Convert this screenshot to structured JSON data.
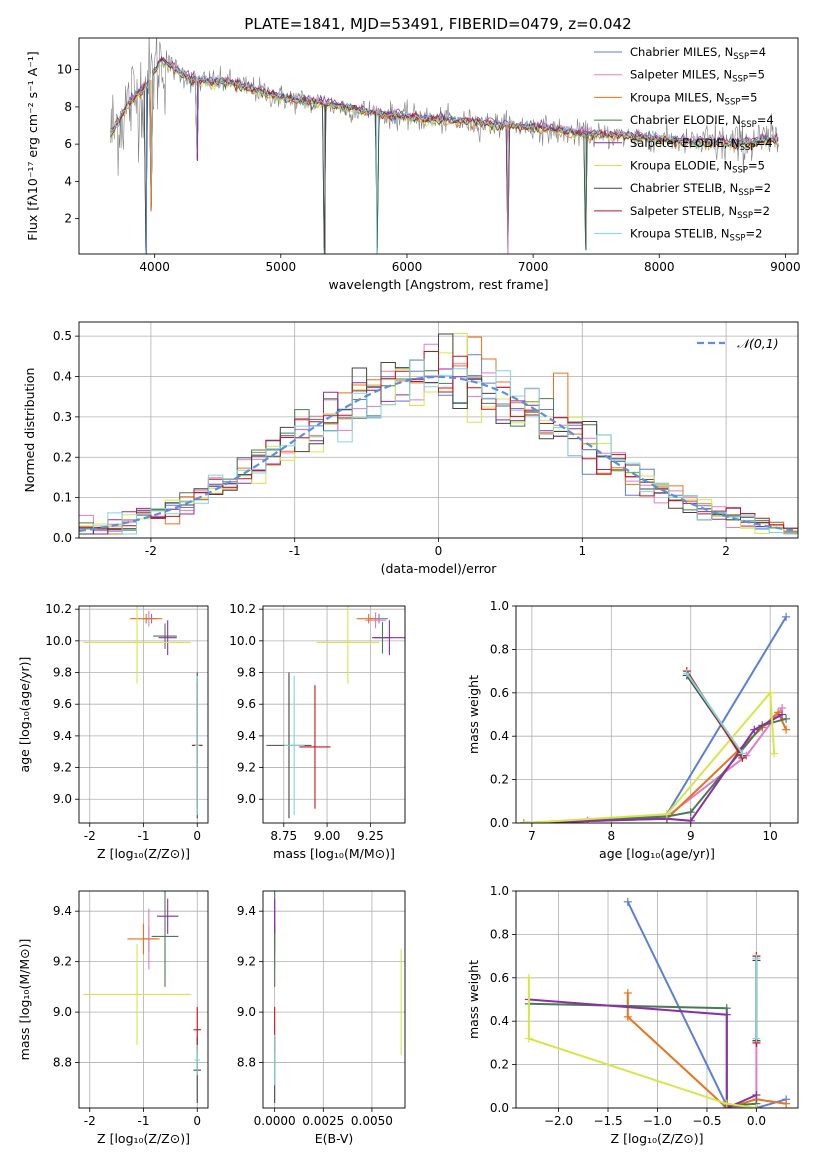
{
  "figure": {
    "title": "PLATE=1841, MJD=53491, FIBERID=0479, z=0.042"
  },
  "colors": {
    "Chabrier MILES": "#5b7fd6",
    "Salpeter MILES": "#e67ac8",
    "Kroupa MILES": "#e8731a",
    "Chabrier ELODIE": "#4a7a55",
    "Salpeter ELODIE": "#8b2fa6",
    "Kroupa ELODIE": "#d6e64a",
    "Chabrier STELIB": "#444444",
    "Salpeter STELIB": "#c0171b",
    "Kroupa STELIB": "#7fd6d8",
    "data": "#808080",
    "normal": "#5b8fe0"
  },
  "chart_data": [
    {
      "id": "spectrum",
      "type": "line",
      "xlabel": "wavelength [Angstrom, rest frame]",
      "ylabel": "Flux [fλ10⁻¹⁷ erg cm⁻² s⁻¹ A⁻¹]",
      "xlim": [
        3400,
        9100
      ],
      "ylim": [
        0.1,
        11.7
      ],
      "xticks": [
        4000,
        5000,
        6000,
        7000,
        8000,
        9000
      ],
      "yticks": [
        2,
        4,
        6,
        8,
        10
      ],
      "grid": false,
      "legend_position": "top-right",
      "legend": [
        {
          "name": "Chabrier MILES",
          "nssp": "4"
        },
        {
          "name": "Salpeter MILES",
          "nssp": "5"
        },
        {
          "name": "Kroupa MILES",
          "nssp": "5"
        },
        {
          "name": "Chabrier ELODIE",
          "nssp": "4"
        },
        {
          "name": "Salpeter ELODIE",
          "nssp": "4"
        },
        {
          "name": "Kroupa ELODIE",
          "nssp": "5"
        },
        {
          "name": "Chabrier STELIB",
          "nssp": "2"
        },
        {
          "name": "Salpeter STELIB",
          "nssp": "2"
        },
        {
          "name": "Kroupa STELIB",
          "nssp": "2"
        }
      ],
      "continuum": {
        "x": [
          3650,
          3800,
          3950,
          4050,
          4300,
          4600,
          5000,
          5400,
          5800,
          6200,
          6600,
          7000,
          7400,
          7800,
          8200,
          8600,
          8900
        ],
        "y": [
          6.5,
          8.2,
          9.2,
          10.5,
          9.4,
          9.3,
          8.5,
          8.1,
          7.6,
          7.3,
          7.1,
          6.9,
          6.5,
          6.4,
          6.1,
          6.0,
          6.2
        ]
      },
      "features": [
        {
          "x": 3935,
          "y": 0.1
        },
        {
          "x": 3970,
          "y": 2.4
        },
        {
          "x": 4340,
          "y": 5.1
        },
        {
          "x": 5350,
          "y": 0.1
        },
        {
          "x": 5760,
          "y": 0.1
        },
        {
          "x": 6800,
          "y": 0.1
        },
        {
          "x": 7420,
          "y": 0.3
        }
      ]
    },
    {
      "id": "residuals",
      "type": "histogram",
      "xlabel": "(data-model)/error",
      "ylabel": "Normed distribution",
      "xlim": [
        -2.5,
        2.5
      ],
      "ylim": [
        0,
        0.535
      ],
      "xticks": [
        -2,
        -1,
        0,
        1,
        2
      ],
      "yticks": [
        0.0,
        0.1,
        0.2,
        0.3,
        0.4,
        0.5
      ],
      "grid": true,
      "legend_position": "top-right",
      "legend": [
        {
          "name": "𝒩(0,1)"
        }
      ],
      "bins": {
        "start": -2.5,
        "width": 0.1,
        "count": 50
      },
      "normal": {
        "mean": 0,
        "sigma": 1
      }
    },
    {
      "id": "age_vs_Z",
      "type": "scatter",
      "xlabel": "Z [log₁₀(Z/Z⊙)]",
      "ylabel": "age  [log₁₀(age/yr)]",
      "xlim": [
        -2.2,
        0.2
      ],
      "ylim": [
        8.85,
        10.22
      ],
      "xticks": [
        -2,
        -1,
        0
      ],
      "yticks": [
        9.0,
        9.2,
        9.4,
        9.6,
        9.8,
        10.0,
        10.2
      ],
      "grid": true,
      "points": [
        {
          "series": "Chabrier MILES",
          "x": -0.85,
          "y": 10.14,
          "xerr": 0.1,
          "yerr": 0.03
        },
        {
          "series": "Salpeter MILES",
          "x": -0.9,
          "y": 10.14,
          "xerr": 0.12,
          "yerr": 0.05
        },
        {
          "series": "Kroupa MILES",
          "x": -0.95,
          "y": 10.14,
          "xerr": 0.3,
          "yerr": 0.03
        },
        {
          "series": "Chabrier ELODIE",
          "x": -0.6,
          "y": 10.03,
          "xerr": 0.22,
          "yerr": 0.08
        },
        {
          "series": "Salpeter ELODIE",
          "x": -0.55,
          "y": 10.02,
          "xerr": 0.17,
          "yerr": 0.11
        },
        {
          "series": "Kroupa ELODIE",
          "x": -1.12,
          "y": 9.99,
          "xerr": 1.0,
          "yerr": 0.26
        },
        {
          "series": "Chabrier STELIB",
          "x": 0.0,
          "y": 9.34,
          "xerr": 0.1,
          "yerr": 0.46
        },
        {
          "series": "Salpeter STELIB",
          "x": 0.0,
          "y": 9.34,
          "xerr": 0.09,
          "yerr": 0.4
        },
        {
          "series": "Kroupa STELIB",
          "x": 0.0,
          "y": 9.34,
          "xerr": 0.04,
          "yerr": 0.44
        }
      ]
    },
    {
      "id": "age_vs_mass",
      "type": "scatter",
      "xlabel": "mass [log₁₀(M/M⊙)]",
      "xlim": [
        8.63,
        9.45
      ],
      "ylim": [
        8.85,
        10.22
      ],
      "xticks": [
        8.75,
        9.0,
        9.25
      ],
      "xticklabels": [
        "8.75",
        "9.00",
        "9.25"
      ],
      "yticks": [
        9.0,
        9.2,
        9.4,
        9.6,
        9.8,
        10.0,
        10.2
      ],
      "grid": true,
      "points": [
        {
          "series": "Chabrier MILES",
          "x": 9.3,
          "y": 10.14,
          "xerr": 0.05,
          "yerr": 0.03
        },
        {
          "series": "Salpeter MILES",
          "x": 9.28,
          "y": 10.13,
          "xerr": 0.06,
          "yerr": 0.05
        },
        {
          "series": "Kroupa MILES",
          "x": 9.24,
          "y": 10.14,
          "xerr": 0.07,
          "yerr": 0.03
        },
        {
          "series": "Chabrier ELODIE",
          "x": 9.32,
          "y": 10.02,
          "xerr": 0.05,
          "yerr": 0.1
        },
        {
          "series": "Salpeter ELODIE",
          "x": 9.36,
          "y": 10.02,
          "xerr": 0.1,
          "yerr": 0.11
        },
        {
          "series": "Kroupa ELODIE",
          "x": 9.12,
          "y": 9.99,
          "xerr": 0.18,
          "yerr": 0.26
        },
        {
          "series": "Chabrier STELIB",
          "x": 8.78,
          "y": 9.34,
          "xerr": 0.13,
          "yerr": 0.46
        },
        {
          "series": "Salpeter STELIB",
          "x": 8.93,
          "y": 9.33,
          "xerr": 0.09,
          "yerr": 0.39
        },
        {
          "series": "Kroupa STELIB",
          "x": 8.81,
          "y": 9.34,
          "xerr": 0.06,
          "yerr": 0.44
        }
      ]
    },
    {
      "id": "mass_weight_vs_age",
      "type": "line",
      "xlabel": "age  [log₁₀(age/yr)]",
      "ylabel": "mass weight",
      "xlim": [
        6.8,
        10.35
      ],
      "ylim": [
        0,
        1.0
      ],
      "xticks": [
        7,
        8,
        9,
        10
      ],
      "yticks": [
        0.0,
        0.2,
        0.4,
        0.6,
        0.8,
        1.0
      ],
      "grid": true,
      "series": [
        {
          "name": "Chabrier MILES",
          "x": [
            6.9,
            7.7,
            8.7,
            10.2
          ],
          "y": [
            0.0,
            0.01,
            0.04,
            0.95
          ]
        },
        {
          "name": "Salpeter MILES",
          "x": [
            6.9,
            7.7,
            8.7,
            9.7,
            10.15
          ],
          "y": [
            0.0,
            0.01,
            0.03,
            0.31,
            0.53
          ]
        },
        {
          "name": "Kroupa MILES",
          "x": [
            6.9,
            8.7,
            9.9,
            10.1,
            10.2
          ],
          "y": [
            0.0,
            0.02,
            0.44,
            0.51,
            0.43
          ]
        },
        {
          "name": "Chabrier ELODIE",
          "x": [
            6.9,
            8.7,
            9.0,
            9.9,
            10.2
          ],
          "y": [
            0.0,
            0.03,
            0.05,
            0.45,
            0.48
          ]
        },
        {
          "name": "Salpeter ELODIE",
          "x": [
            6.9,
            8.7,
            9.0,
            9.8,
            10.15
          ],
          "y": [
            0.0,
            0.02,
            0.01,
            0.43,
            0.5
          ]
        },
        {
          "name": "Kroupa ELODIE",
          "x": [
            6.9,
            8.7,
            10.0,
            10.05
          ],
          "y": [
            0.0,
            0.04,
            0.6,
            0.32
          ]
        },
        {
          "name": "Chabrier STELIB",
          "x": [
            8.95,
            9.65
          ],
          "y": [
            0.68,
            0.31
          ]
        },
        {
          "name": "Salpeter STELIB",
          "x": [
            8.95,
            9.65
          ],
          "y": [
            0.7,
            0.3
          ]
        },
        {
          "name": "Kroupa STELIB",
          "x": [
            8.95,
            9.65
          ],
          "y": [
            0.69,
            0.32
          ]
        }
      ]
    },
    {
      "id": "mass_vs_Z",
      "type": "scatter",
      "xlabel": "Z [log₁₀(Z/Z⊙)]",
      "ylabel": "mass [log₁₀(M/M⊙)]",
      "xlim": [
        -2.2,
        0.2
      ],
      "ylim": [
        8.62,
        9.48
      ],
      "xticks": [
        -2,
        -1,
        0
      ],
      "yticks": [
        8.8,
        9.0,
        9.2,
        9.4
      ],
      "yticklabels": [
        "8.8",
        "9.0",
        "9.2",
        "9.4"
      ],
      "grid": true,
      "points": [
        {
          "series": "Chabrier MILES",
          "x": -0.9,
          "y": 9.29,
          "xerr": 0.15,
          "yerr": 0.05
        },
        {
          "series": "Salpeter MILES",
          "x": -0.9,
          "y": 9.29,
          "xerr": 0.1,
          "yerr": 0.12
        },
        {
          "series": "Kroupa MILES",
          "x": -1.0,
          "y": 9.29,
          "xerr": 0.3,
          "yerr": 0.06
        },
        {
          "series": "Chabrier ELODIE",
          "x": -0.6,
          "y": 9.3,
          "xerr": 0.25,
          "yerr": 0.2
        },
        {
          "series": "Salpeter ELODIE",
          "x": -0.55,
          "y": 9.38,
          "xerr": 0.2,
          "yerr": 0.07
        },
        {
          "series": "Kroupa ELODIE",
          "x": -1.12,
          "y": 9.07,
          "xerr": 1.0,
          "yerr": 0.2
        },
        {
          "series": "Chabrier STELIB",
          "x": 0.0,
          "y": 8.77,
          "xerr": 0.07,
          "yerr": 0.13
        },
        {
          "series": "Salpeter STELIB",
          "x": 0.0,
          "y": 8.93,
          "xerr": 0.07,
          "yerr": 0.09
        },
        {
          "series": "Kroupa STELIB",
          "x": 0.0,
          "y": 8.81,
          "xerr": 0.05,
          "yerr": 0.06
        }
      ]
    },
    {
      "id": "mass_vs_EBV",
      "type": "scatter",
      "xlabel": "E(B-V)",
      "xlim": [
        -0.0006,
        0.0067
      ],
      "ylim": [
        8.62,
        9.48
      ],
      "xticks": [
        0.0,
        0.0025,
        0.005
      ],
      "xticklabels": [
        "0.0000",
        "0.0025",
        "0.0050"
      ],
      "yticks": [
        8.8,
        9.0,
        9.2,
        9.4
      ],
      "yticklabels": [
        "8.8",
        "9.0",
        "9.2",
        "9.4"
      ],
      "grid": true,
      "points": [
        {
          "series": "Chabrier MILES",
          "x": 0.0,
          "y": 9.3,
          "xerr": 0,
          "yerr": 0.05
        },
        {
          "series": "Salpeter MILES",
          "x": 0.0,
          "y": 9.29,
          "xerr": 0,
          "yerr": 0.12
        },
        {
          "series": "Kroupa MILES",
          "x": 0.0,
          "y": 9.29,
          "xerr": 0,
          "yerr": 0.06
        },
        {
          "series": "Chabrier ELODIE",
          "x": 0.0,
          "y": 9.3,
          "xerr": 0,
          "yerr": 0.2
        },
        {
          "series": "Salpeter ELODIE",
          "x": 0.0,
          "y": 9.38,
          "xerr": 0,
          "yerr": 0.07
        },
        {
          "series": "Kroupa ELODIE",
          "x": 0.0065,
          "y": 9.04,
          "xerr": 0,
          "yerr": 0.21
        },
        {
          "series": "Chabrier STELIB",
          "x": 0.0,
          "y": 8.77,
          "xerr": 0,
          "yerr": 0.13
        },
        {
          "series": "Salpeter STELIB",
          "x": 0.0,
          "y": 8.93,
          "xerr": 0,
          "yerr": 0.09
        },
        {
          "series": "Kroupa STELIB",
          "x": 0.0,
          "y": 8.81,
          "xerr": 0,
          "yerr": 0.1
        }
      ]
    },
    {
      "id": "mass_weight_vs_Z",
      "type": "line",
      "xlabel": "Z [log₁₀(Z/Z⊙)]",
      "ylabel": "mass weight",
      "xlim": [
        -2.43,
        0.42
      ],
      "ylim": [
        0,
        1.0
      ],
      "xticks": [
        -2.0,
        -1.5,
        -1.0,
        -0.5,
        0.0
      ],
      "xticklabels": [
        "−2.0",
        "−1.5",
        "−1.0",
        "−0.5",
        "0.0"
      ],
      "yticks": [
        0.0,
        0.2,
        0.4,
        0.6,
        0.8,
        1.0
      ],
      "grid": true,
      "series": [
        {
          "name": "Chabrier MILES",
          "x": [
            -1.3,
            -0.3,
            0.0,
            0.3
          ],
          "y": [
            0.95,
            0.01,
            0.0,
            0.04
          ]
        },
        {
          "name": "Salpeter MILES",
          "x": [
            0.0,
            0.0,
            0.0,
            -0.3
          ],
          "y": [
            0.7,
            0.31,
            0.0,
            0.0
          ]
        },
        {
          "name": "Kroupa MILES",
          "x": [
            -1.3,
            -1.3,
            -0.3,
            0.0,
            0.3
          ],
          "y": [
            0.53,
            0.42,
            0.0,
            0.04,
            0.02
          ]
        },
        {
          "name": "Chabrier ELODIE",
          "x": [
            -2.3,
            -0.3,
            -0.3,
            0.0
          ],
          "y": [
            0.48,
            0.46,
            0.01,
            0.02
          ]
        },
        {
          "name": "Salpeter ELODIE",
          "x": [
            -2.3,
            -0.3,
            -0.3,
            0.0
          ],
          "y": [
            0.5,
            0.43,
            0.0,
            0.06
          ]
        },
        {
          "name": "Kroupa ELODIE",
          "x": [
            -2.3,
            -2.3,
            -0.3,
            0.0
          ],
          "y": [
            0.6,
            0.32,
            0.02,
            0.0
          ]
        },
        {
          "name": "Chabrier STELIB",
          "x": [
            0.0,
            0.0
          ],
          "y": [
            0.68,
            0.31
          ]
        },
        {
          "name": "Salpeter STELIB",
          "x": [
            0.0,
            0.0
          ],
          "y": [
            0.7,
            0.3
          ]
        },
        {
          "name": "Kroupa STELIB",
          "x": [
            0.0,
            0.0
          ],
          "y": [
            0.69,
            0.32
          ]
        }
      ]
    }
  ]
}
